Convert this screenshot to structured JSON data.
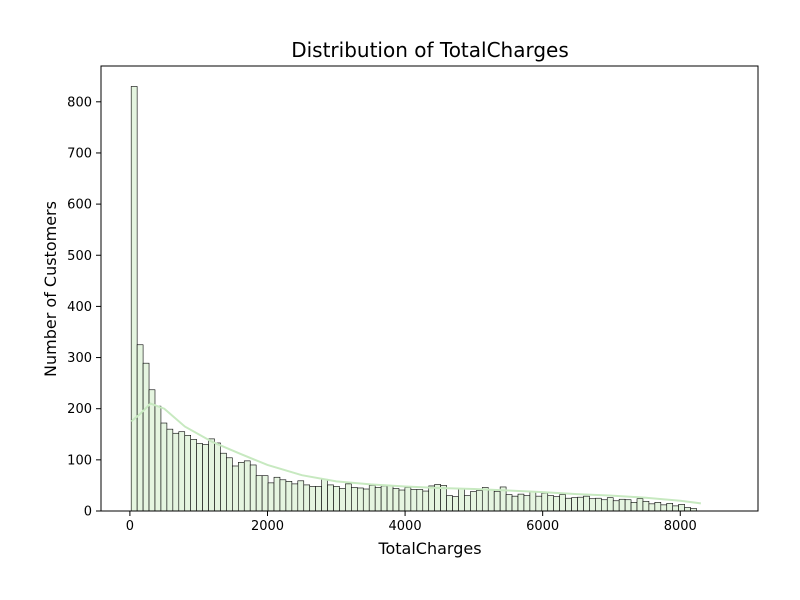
{
  "chart_data": {
    "type": "bar",
    "title": "Distribution of TotalCharges",
    "xlabel": "TotalCharges",
    "ylabel": "Number of Customers",
    "xlim": [
      -420,
      9130
    ],
    "ylim": [
      0,
      870
    ],
    "xticks": [
      0,
      2000,
      4000,
      6000,
      8000
    ],
    "yticks": [
      0,
      100,
      200,
      300,
      400,
      500,
      600,
      700,
      800
    ],
    "bin_start": 18.8,
    "bin_width": 86.5,
    "bar_color": "#e5f5e0",
    "edge_color": "#000000",
    "kde_color": "#c7e9c0",
    "grid": false,
    "legend": "none",
    "values": [
      830,
      325,
      289,
      237,
      205,
      172,
      160,
      152,
      155,
      148,
      140,
      132,
      130,
      141,
      133,
      113,
      104,
      88,
      95,
      98,
      90,
      69,
      69,
      55,
      66,
      61,
      58,
      53,
      59,
      51,
      48,
      48,
      62,
      51,
      48,
      44,
      53,
      46,
      45,
      43,
      50,
      46,
      49,
      50,
      44,
      41,
      46,
      42,
      42,
      39,
      49,
      52,
      50,
      30,
      28,
      43,
      30,
      38,
      40,
      46,
      42,
      38,
      47,
      32,
      29,
      33,
      30,
      38,
      29,
      35,
      30,
      28,
      32,
      25,
      26,
      27,
      29,
      24,
      25,
      22,
      26,
      20,
      23,
      22,
      17,
      24,
      19,
      14,
      17,
      12,
      15,
      10,
      13,
      7,
      5
    ],
    "kde": {
      "x": [
        18.8,
        150,
        300,
        500,
        800,
        1200,
        1600,
        2000,
        2500,
        3000,
        3500,
        4000,
        4500,
        5000,
        5500,
        6000,
        6500,
        7000,
        7500,
        8000,
        8300
      ],
      "y": [
        175,
        190,
        210,
        200,
        165,
        135,
        112,
        90,
        70,
        58,
        52,
        48,
        45,
        43,
        40,
        37,
        33,
        30,
        26,
        20,
        15
      ]
    }
  }
}
